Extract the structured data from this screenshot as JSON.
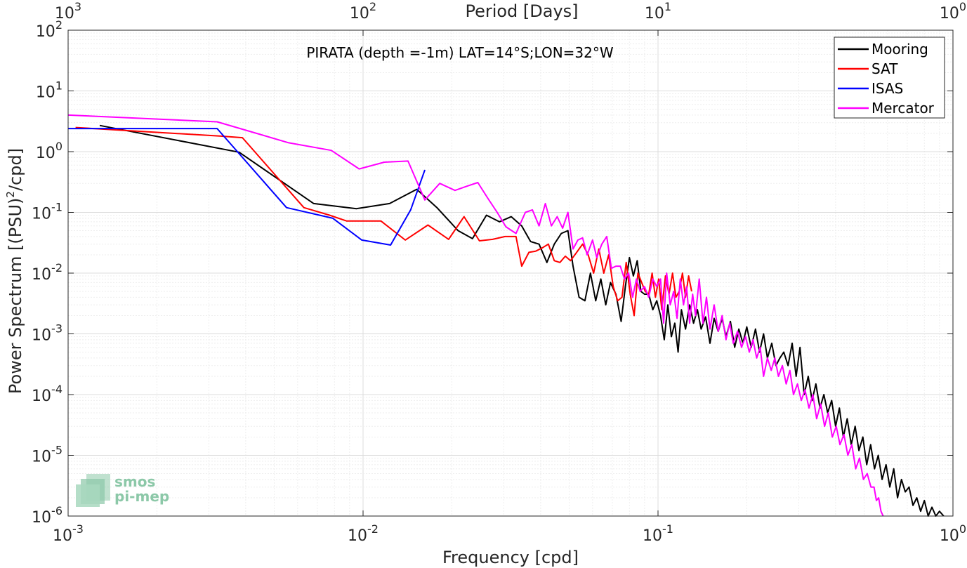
{
  "chart_data": {
    "type": "line",
    "title": "PIRATA (depth =-1m) LAT=14°S;LON=32°W",
    "xlabel": "Frequency [cpd]",
    "ylabel": "Power Spectrum [(PSU)",
    "ylabel_sup": "2",
    "ylabel_tail": "/cpd]",
    "top_xlabel": "Period [Days]",
    "xscale": "log",
    "yscale": "log",
    "xlim": [
      0.001,
      1
    ],
    "ylim": [
      1e-06,
      100
    ],
    "grid": true,
    "legend_position": "top-right",
    "x_ticks": [
      {
        "value": 0.001,
        "base": "10",
        "exp": "-3"
      },
      {
        "value": 0.01,
        "base": "10",
        "exp": "-2"
      },
      {
        "value": 0.1,
        "base": "10",
        "exp": "-1"
      },
      {
        "value": 1,
        "base": "10",
        "exp": "0"
      }
    ],
    "top_ticks": [
      {
        "value": 0.001,
        "base": "10",
        "exp": "3"
      },
      {
        "value": 0.01,
        "base": "10",
        "exp": "2"
      },
      {
        "value": 0.1,
        "base": "10",
        "exp": "1"
      },
      {
        "value": 1,
        "base": "10",
        "exp": "0"
      }
    ],
    "y_ticks": [
      {
        "value": 100,
        "base": "10",
        "exp": "2"
      },
      {
        "value": 10,
        "base": "10",
        "exp": "1"
      },
      {
        "value": 1,
        "base": "10",
        "exp": "0"
      },
      {
        "value": 0.1,
        "base": "10",
        "exp": "-1"
      },
      {
        "value": 0.01,
        "base": "10",
        "exp": "-2"
      },
      {
        "value": 0.001,
        "base": "10",
        "exp": "-3"
      },
      {
        "value": 0.0001,
        "base": "10",
        "exp": "-4"
      },
      {
        "value": 1e-05,
        "base": "10",
        "exp": "-5"
      },
      {
        "value": 1e-06,
        "base": "10",
        "exp": "-6"
      }
    ],
    "series": [
      {
        "name": "Mooring",
        "color": "#000000",
        "points": [
          [
            0.00128,
            2.7
          ],
          [
            0.0038,
            0.98
          ],
          [
            0.0068,
            0.14
          ],
          [
            0.0095,
            0.115
          ],
          [
            0.0123,
            0.14
          ],
          [
            0.0152,
            0.24
          ],
          [
            0.0178,
            0.12
          ],
          [
            0.021,
            0.05
          ],
          [
            0.0235,
            0.037
          ],
          [
            0.0262,
            0.09
          ],
          [
            0.029,
            0.07
          ],
          [
            0.0318,
            0.085
          ],
          [
            0.0345,
            0.06
          ],
          [
            0.037,
            0.033
          ],
          [
            0.0395,
            0.03
          ],
          [
            0.042,
            0.015
          ],
          [
            0.0445,
            0.03
          ],
          [
            0.047,
            0.045
          ],
          [
            0.0495,
            0.05
          ],
          [
            0.0515,
            0.013
          ],
          [
            0.054,
            0.004
          ],
          [
            0.0565,
            0.0035
          ],
          [
            0.059,
            0.01
          ],
          [
            0.0615,
            0.0035
          ],
          [
            0.064,
            0.008
          ],
          [
            0.0665,
            0.003
          ],
          [
            0.069,
            0.007
          ],
          [
            0.072,
            0.0045
          ],
          [
            0.075,
            0.0016
          ],
          [
            0.0775,
            0.006
          ],
          [
            0.08,
            0.018
          ],
          [
            0.0825,
            0.009
          ],
          [
            0.085,
            0.016
          ],
          [
            0.0875,
            0.005
          ],
          [
            0.09,
            0.0045
          ],
          [
            0.093,
            0.0045
          ],
          [
            0.096,
            0.0025
          ],
          [
            0.099,
            0.0035
          ],
          [
            0.102,
            0.002
          ],
          [
            0.105,
            0.0008
          ],
          [
            0.108,
            0.003
          ],
          [
            0.111,
            0.0009
          ],
          [
            0.114,
            0.0015
          ],
          [
            0.117,
            0.0005
          ],
          [
            0.12,
            0.0025
          ],
          [
            0.124,
            0.0012
          ],
          [
            0.128,
            0.003
          ],
          [
            0.132,
            0.0015
          ],
          [
            0.136,
            0.0025
          ],
          [
            0.14,
            0.0012
          ],
          [
            0.145,
            0.0019
          ],
          [
            0.15,
            0.0007
          ],
          [
            0.155,
            0.0018
          ],
          [
            0.16,
            0.0011
          ],
          [
            0.165,
            0.0018
          ],
          [
            0.17,
            0.0009
          ],
          [
            0.176,
            0.0016
          ],
          [
            0.182,
            0.0006
          ],
          [
            0.188,
            0.0012
          ],
          [
            0.194,
            0.0007
          ],
          [
            0.2,
            0.0013
          ],
          [
            0.207,
            0.0006
          ],
          [
            0.214,
            0.0012
          ],
          [
            0.221,
            0.0005
          ],
          [
            0.228,
            0.001
          ],
          [
            0.235,
            0.0004
          ],
          [
            0.243,
            0.0007
          ],
          [
            0.251,
            0.0003
          ],
          [
            0.259,
            0.0004
          ],
          [
            0.267,
            0.0005
          ],
          [
            0.276,
            0.0003
          ],
          [
            0.285,
            0.0007
          ],
          [
            0.294,
            0.0002
          ],
          [
            0.303,
            0.0006
          ],
          [
            0.313,
            0.0001
          ],
          [
            0.323,
            0.0002
          ],
          [
            0.333,
            8e-05
          ],
          [
            0.343,
            0.00015
          ],
          [
            0.354,
            6e-05
          ],
          [
            0.365,
            0.0001
          ],
          [
            0.376,
            5e-05
          ],
          [
            0.388,
            8e-05
          ],
          [
            0.4,
            3e-05
          ],
          [
            0.412,
            6e-05
          ],
          [
            0.425,
            2e-05
          ],
          [
            0.438,
            4e-05
          ],
          [
            0.452,
            1.5e-05
          ],
          [
            0.466,
            3e-05
          ],
          [
            0.48,
            1.2e-05
          ],
          [
            0.495,
            2e-05
          ],
          [
            0.51,
            7e-06
          ],
          [
            0.526,
            1.5e-05
          ],
          [
            0.542,
            6e-06
          ],
          [
            0.558,
            1e-05
          ],
          [
            0.575,
            4e-06
          ],
          [
            0.593,
            7e-06
          ],
          [
            0.611,
            3e-06
          ],
          [
            0.63,
            6e-06
          ],
          [
            0.649,
            2e-06
          ],
          [
            0.669,
            4e-06
          ],
          [
            0.689,
            2.5e-06
          ],
          [
            0.71,
            3e-06
          ],
          [
            0.732,
            1.5e-06
          ],
          [
            0.754,
            2e-06
          ],
          [
            0.777,
            1.2e-06
          ],
          [
            0.8,
            1.8e-06
          ],
          [
            0.824,
            1e-06
          ],
          [
            0.849,
            1.4e-06
          ],
          [
            0.875,
            1e-06
          ],
          [
            0.9,
            1.2e-06
          ],
          [
            0.93,
            1e-06
          ]
        ]
      },
      {
        "name": "SAT",
        "color": "#ff0000",
        "points": [
          [
            0.00106,
            2.5
          ],
          [
            0.0033,
            1.8
          ],
          [
            0.0039,
            1.7
          ],
          [
            0.0063,
            0.12
          ],
          [
            0.0077,
            0.09
          ],
          [
            0.0088,
            0.072
          ],
          [
            0.0115,
            0.072
          ],
          [
            0.0139,
            0.035
          ],
          [
            0.0166,
            0.062
          ],
          [
            0.0195,
            0.036
          ],
          [
            0.022,
            0.085
          ],
          [
            0.0248,
            0.034
          ],
          [
            0.0275,
            0.036
          ],
          [
            0.0303,
            0.04
          ],
          [
            0.033,
            0.04
          ],
          [
            0.0345,
            0.013
          ],
          [
            0.0365,
            0.022
          ],
          [
            0.0385,
            0.023
          ],
          [
            0.0405,
            0.026
          ],
          [
            0.0425,
            0.03
          ],
          [
            0.0445,
            0.016
          ],
          [
            0.0465,
            0.015
          ],
          [
            0.0485,
            0.019
          ],
          [
            0.0505,
            0.016
          ],
          [
            0.053,
            0.022
          ],
          [
            0.0555,
            0.03
          ],
          [
            0.058,
            0.02
          ],
          [
            0.0605,
            0.01
          ],
          [
            0.063,
            0.025
          ],
          [
            0.0655,
            0.01
          ],
          [
            0.068,
            0.02
          ],
          [
            0.0705,
            0.006
          ],
          [
            0.073,
            0.0035
          ],
          [
            0.0755,
            0.004
          ],
          [
            0.078,
            0.015
          ],
          [
            0.0805,
            0.0045
          ],
          [
            0.083,
            0.002
          ],
          [
            0.0855,
            0.01
          ],
          [
            0.088,
            0.007
          ],
          [
            0.0905,
            0.005
          ],
          [
            0.093,
            0.0045
          ],
          [
            0.0955,
            0.01
          ],
          [
            0.098,
            0.004
          ],
          [
            0.1005,
            0.008
          ],
          [
            0.103,
            0.0025
          ],
          [
            0.106,
            0.009
          ],
          [
            0.109,
            0.0045
          ],
          [
            0.112,
            0.01
          ],
          [
            0.115,
            0.004
          ],
          [
            0.118,
            0.005
          ],
          [
            0.121,
            0.01
          ],
          [
            0.124,
            0.004
          ],
          [
            0.127,
            0.009
          ],
          [
            0.13,
            0.005
          ]
        ]
      },
      {
        "name": "ISAS",
        "color": "#0000ff",
        "points": [
          [
            0.001,
            2.4
          ],
          [
            0.0032,
            2.4
          ],
          [
            0.0055,
            0.12
          ],
          [
            0.0079,
            0.08
          ],
          [
            0.0099,
            0.035
          ],
          [
            0.0124,
            0.029
          ],
          [
            0.0145,
            0.11
          ],
          [
            0.0162,
            0.5
          ]
        ]
      },
      {
        "name": "Mercator",
        "color": "#ff00ff",
        "points": [
          [
            0.001,
            4.0
          ],
          [
            0.0032,
            3.1
          ],
          [
            0.0056,
            1.4
          ],
          [
            0.0078,
            1.05
          ],
          [
            0.0097,
            0.52
          ],
          [
            0.0118,
            0.67
          ],
          [
            0.0142,
            0.7
          ],
          [
            0.0162,
            0.16
          ],
          [
            0.0182,
            0.3
          ],
          [
            0.0205,
            0.23
          ],
          [
            0.0225,
            0.27
          ],
          [
            0.0245,
            0.31
          ],
          [
            0.0265,
            0.17
          ],
          [
            0.0285,
            0.1
          ],
          [
            0.0305,
            0.058
          ],
          [
            0.033,
            0.045
          ],
          [
            0.0355,
            0.1
          ],
          [
            0.0375,
            0.11
          ],
          [
            0.0395,
            0.06
          ],
          [
            0.0415,
            0.14
          ],
          [
            0.0435,
            0.06
          ],
          [
            0.0455,
            0.085
          ],
          [
            0.0475,
            0.055
          ],
          [
            0.0495,
            0.1
          ],
          [
            0.0515,
            0.025
          ],
          [
            0.0535,
            0.035
          ],
          [
            0.0555,
            0.038
          ],
          [
            0.0575,
            0.02
          ],
          [
            0.06,
            0.035
          ],
          [
            0.062,
            0.018
          ],
          [
            0.0645,
            0.03
          ],
          [
            0.067,
            0.04
          ],
          [
            0.0695,
            0.012
          ],
          [
            0.072,
            0.013
          ],
          [
            0.0745,
            0.013
          ],
          [
            0.077,
            0.008
          ],
          [
            0.0795,
            0.01
          ],
          [
            0.082,
            0.004
          ],
          [
            0.0845,
            0.008
          ],
          [
            0.087,
            0.005
          ],
          [
            0.09,
            0.006
          ],
          [
            0.093,
            0.004
          ],
          [
            0.096,
            0.008
          ],
          [
            0.099,
            0.006
          ],
          [
            0.102,
            0.008
          ],
          [
            0.1045,
            0.0015
          ],
          [
            0.107,
            0.01
          ],
          [
            0.11,
            0.003
          ],
          [
            0.113,
            0.005
          ],
          [
            0.116,
            0.0018
          ],
          [
            0.119,
            0.008
          ],
          [
            0.122,
            0.003
          ],
          [
            0.125,
            0.006
          ],
          [
            0.128,
            0.0015
          ],
          [
            0.131,
            0.0045
          ],
          [
            0.134,
            0.002
          ],
          [
            0.138,
            0.008
          ],
          [
            0.142,
            0.0015
          ],
          [
            0.146,
            0.004
          ],
          [
            0.15,
            0.0012
          ],
          [
            0.155,
            0.003
          ],
          [
            0.16,
            0.0011
          ],
          [
            0.165,
            0.002
          ],
          [
            0.17,
            0.0008
          ],
          [
            0.175,
            0.0015
          ],
          [
            0.18,
            0.0007
          ],
          [
            0.186,
            0.0011
          ],
          [
            0.192,
            0.0006
          ],
          [
            0.198,
            0.0009
          ],
          [
            0.204,
            0.0005
          ],
          [
            0.21,
            0.0008
          ],
          [
            0.216,
            0.0004
          ],
          [
            0.222,
            0.0006
          ],
          [
            0.228,
            0.0002
          ],
          [
            0.235,
            0.0004
          ],
          [
            0.242,
            0.00025
          ],
          [
            0.249,
            0.0004
          ],
          [
            0.256,
            0.0002
          ],
          [
            0.264,
            0.0003
          ],
          [
            0.272,
            0.00015
          ],
          [
            0.28,
            0.00025
          ],
          [
            0.288,
            0.0001
          ],
          [
            0.297,
            0.00015
          ],
          [
            0.306,
            8e-05
          ],
          [
            0.315,
            0.00012
          ],
          [
            0.325,
            6e-05
          ],
          [
            0.335,
            0.0001
          ],
          [
            0.345,
            4e-05
          ],
          [
            0.356,
            7e-05
          ],
          [
            0.367,
            3e-05
          ],
          [
            0.378,
            5e-05
          ],
          [
            0.39,
            2e-05
          ],
          [
            0.402,
            3e-05
          ],
          [
            0.414,
            1.5e-05
          ],
          [
            0.427,
            2.2e-05
          ],
          [
            0.44,
            1e-05
          ],
          [
            0.454,
            1.5e-05
          ],
          [
            0.468,
            6e-06
          ],
          [
            0.482,
            9e-06
          ],
          [
            0.497,
            4e-06
          ],
          [
            0.512,
            5e-06
          ],
          [
            0.527,
            3e-06
          ],
          [
            0.54,
            3e-06
          ],
          [
            0.55,
            1.8e-06
          ],
          [
            0.56,
            2e-06
          ],
          [
            0.57,
            1.2e-06
          ],
          [
            0.58,
            1e-06
          ]
        ]
      }
    ]
  },
  "watermark": {
    "line1": "smos",
    "line2": "pi-mep",
    "color": "#8cc8a8"
  }
}
